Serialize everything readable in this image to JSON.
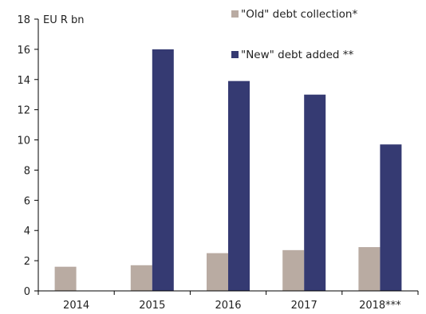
{
  "chart_data": {
    "type": "bar",
    "unit_label": "EU R bn",
    "categories": [
      "2014",
      "2015",
      "2016",
      "2017",
      "2018***"
    ],
    "series": [
      {
        "name": "\"Old\" debt collection*",
        "color": "#b9aba2",
        "values": [
          1.6,
          1.7,
          2.5,
          2.7,
          2.9
        ]
      },
      {
        "name": "\"New\" debt added **",
        "color": "#353a72",
        "values": [
          0,
          16.0,
          13.9,
          13.0,
          9.7
        ]
      }
    ],
    "ylim": [
      0,
      18
    ],
    "yticks": [
      0,
      2,
      4,
      6,
      8,
      10,
      12,
      14,
      16,
      18
    ],
    "grid": false,
    "legend_position": "top-right"
  }
}
